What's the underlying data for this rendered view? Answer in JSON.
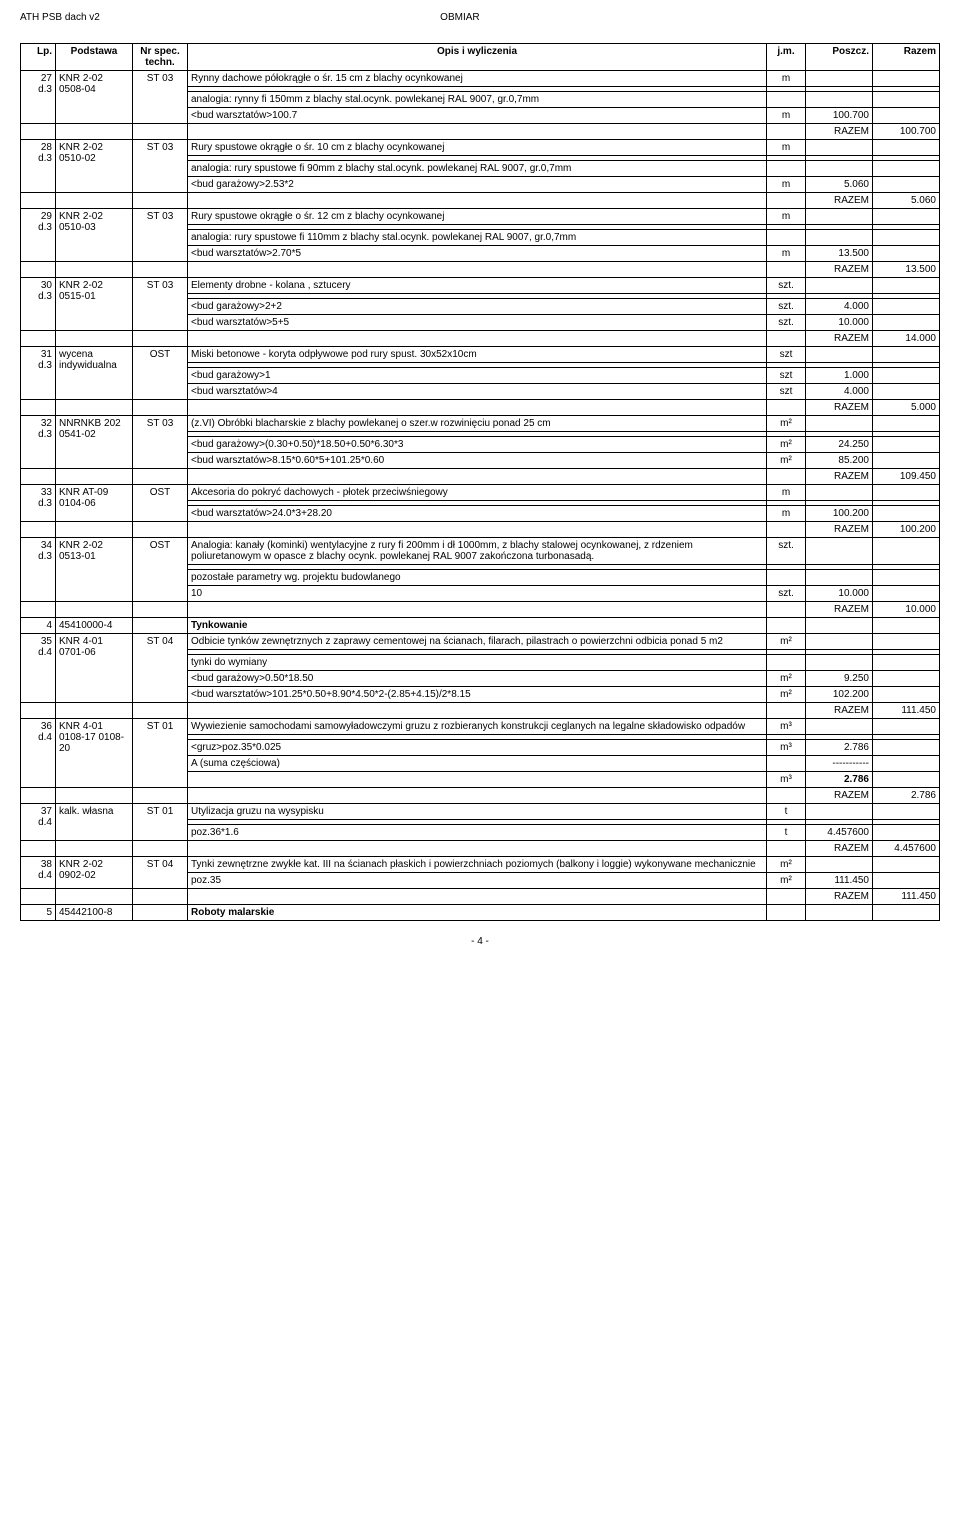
{
  "header": {
    "left": "ATH PSB dach v2",
    "center": "OBMIAR"
  },
  "columns": [
    "Lp.",
    "Podstawa",
    "Nr spec. techn.",
    "Opis i wyliczenia",
    "j.m.",
    "Poszcz.",
    "Razem"
  ],
  "rows": [
    {
      "lp": "27",
      "dsub": "d.3",
      "pod": "KNR 2-02 0508-04",
      "spec": "ST 03",
      "lines": [
        {
          "opis": "Rynny dachowe półokrągłe o śr. 15 cm z blachy ocynkowanej",
          "jm": "m",
          "poszcz": "",
          "razem": ""
        },
        {
          "opis": "",
          "jm": "",
          "poszcz": "",
          "razem": ""
        },
        {
          "opis": "analogia: rynny fi 150mm z blachy stal.ocynk. powlekanej RAL 9007, gr.0,7mm",
          "jm": "",
          "poszcz": "",
          "razem": ""
        },
        {
          "opis": "<bud warsztatów>100.7",
          "jm": "m",
          "poszcz": "100.700",
          "razem": ""
        }
      ],
      "razemline": {
        "label": "RAZEM",
        "val": "100.700"
      }
    },
    {
      "lp": "28",
      "dsub": "d.3",
      "pod": "KNR 2-02 0510-02",
      "spec": "ST 03",
      "lines": [
        {
          "opis": "Rury spustowe okrągłe o śr. 10 cm z blachy ocynkowanej",
          "jm": "m",
          "poszcz": "",
          "razem": ""
        },
        {
          "opis": "",
          "jm": "",
          "poszcz": "",
          "razem": ""
        },
        {
          "opis": "analogia: rury spustowe fi 90mm z blachy stal.ocynk. powlekanej RAL 9007, gr.0,7mm",
          "jm": "",
          "poszcz": "",
          "razem": ""
        },
        {
          "opis": "<bud garażowy>2.53*2",
          "jm": "m",
          "poszcz": "5.060",
          "razem": ""
        }
      ],
      "razemline": {
        "label": "RAZEM",
        "val": "5.060"
      }
    },
    {
      "lp": "29",
      "dsub": "d.3",
      "pod": "KNR 2-02 0510-03",
      "spec": "ST 03",
      "lines": [
        {
          "opis": "Rury spustowe okrągłe o śr. 12 cm z blachy ocynkowanej",
          "jm": "m",
          "poszcz": "",
          "razem": ""
        },
        {
          "opis": "",
          "jm": "",
          "poszcz": "",
          "razem": ""
        },
        {
          "opis": "analogia: rury spustowe fi 110mm z blachy stal.ocynk. powlekanej RAL 9007, gr.0,7mm",
          "jm": "",
          "poszcz": "",
          "razem": ""
        },
        {
          "opis": "<bud  warsztatów>2.70*5",
          "jm": "m",
          "poszcz": "13.500",
          "razem": ""
        }
      ],
      "razemline": {
        "label": "RAZEM",
        "val": "13.500"
      }
    },
    {
      "lp": "30",
      "dsub": "d.3",
      "pod": "KNR 2-02 0515-01",
      "spec": "ST 03",
      "lines": [
        {
          "opis": "Elementy drobne - kolana , sztucery",
          "jm": "szt.",
          "poszcz": "",
          "razem": ""
        },
        {
          "opis": "",
          "jm": "",
          "poszcz": "",
          "razem": ""
        },
        {
          "opis": "<bud  garażowy>2+2",
          "jm": "szt.",
          "poszcz": "4.000",
          "razem": ""
        },
        {
          "opis": "<bud  warsztatów>5+5",
          "jm": "szt.",
          "poszcz": "10.000",
          "razem": ""
        }
      ],
      "razemline": {
        "label": "RAZEM",
        "val": "14.000"
      }
    },
    {
      "lp": "31",
      "dsub": "d.3",
      "pod": "wycena indywidualna",
      "spec": "OST",
      "lines": [
        {
          "opis": "Miski betonowe - koryta odpływowe pod rury spust. 30x52x10cm",
          "jm": "szt",
          "poszcz": "",
          "razem": ""
        },
        {
          "opis": "",
          "jm": "",
          "poszcz": "",
          "razem": ""
        },
        {
          "opis": "<bud  garażowy>1",
          "jm": "szt",
          "poszcz": "1.000",
          "razem": ""
        },
        {
          "opis": "<bud  warsztatów>4",
          "jm": "szt",
          "poszcz": "4.000",
          "razem": ""
        }
      ],
      "razemline": {
        "label": "RAZEM",
        "val": "5.000"
      }
    },
    {
      "lp": "32",
      "dsub": "d.3",
      "pod": "NNRNKB 202 0541-02",
      "spec": "ST 03",
      "lines": [
        {
          "opis": "(z.VI) Obróbki blacharskie z blachy powlekanej o szer.w rozwinięciu ponad 25 cm",
          "jm": "m²",
          "poszcz": "",
          "razem": ""
        },
        {
          "opis": "",
          "jm": "",
          "poszcz": "",
          "razem": ""
        },
        {
          "opis": "<bud  garażowy>(0.30+0.50)*18.50+0.50*6.30*3",
          "jm": "m²",
          "poszcz": "24.250",
          "razem": ""
        },
        {
          "opis": "<bud  warsztatów>8.15*0.60*5+101.25*0.60",
          "jm": "m²",
          "poszcz": "85.200",
          "razem": ""
        }
      ],
      "razemline": {
        "label": "RAZEM",
        "val": "109.450"
      }
    },
    {
      "lp": "33",
      "dsub": "d.3",
      "pod": "KNR AT-09 0104-06",
      "spec": "OST",
      "lines": [
        {
          "opis": "Akcesoria do pokryć dachowych - płotek przeciwśniegowy",
          "jm": "m",
          "poszcz": "",
          "razem": ""
        },
        {
          "opis": "",
          "jm": "",
          "poszcz": "",
          "razem": ""
        },
        {
          "opis": "<bud  warsztatów>24.0*3+28.20",
          "jm": "m",
          "poszcz": "100.200",
          "razem": ""
        }
      ],
      "razemline": {
        "label": "RAZEM",
        "val": "100.200"
      }
    },
    {
      "lp": "34",
      "dsub": "d.3",
      "pod": "KNR 2-02 0513-01",
      "spec": "OST",
      "lines": [
        {
          "opis": "Analogia: kanały (kominki) wentylacyjne z rury fi 200mm i dł 1000mm, z blachy stalowej ocynkowanej, z rdzeniem poliuretanowym w opasce z blachy ocynk. powlekanej RAL 9007 zakończona turbonasadą.",
          "jm": "szt.",
          "poszcz": "",
          "razem": ""
        },
        {
          "opis": "",
          "jm": "",
          "poszcz": "",
          "razem": ""
        },
        {
          "opis": "pozostałe parametry wg. projektu budowlanego",
          "jm": "",
          "poszcz": "",
          "razem": ""
        },
        {
          "opis": "10",
          "jm": "szt.",
          "poszcz": "10.000",
          "razem": ""
        }
      ],
      "razemline": {
        "label": "RAZEM",
        "val": "10.000"
      }
    },
    {
      "lp": "4",
      "dsub": "",
      "pod": "45410000-4",
      "spec": "",
      "lines": [
        {
          "opis": "Tynkowanie",
          "jm": "",
          "poszcz": "",
          "razem": "",
          "bold": true
        }
      ]
    },
    {
      "lp": "35",
      "dsub": "d.4",
      "pod": "KNR 4-01 0701-06",
      "spec": "ST 04",
      "lines": [
        {
          "opis": "Odbicie tynków zewnętrznych z zaprawy cementowej na ścianach, filarach, pilastrach o powierzchni odbicia ponad 5 m2",
          "jm": "m²",
          "poszcz": "",
          "razem": ""
        },
        {
          "opis": "",
          "jm": "",
          "poszcz": "",
          "razem": ""
        },
        {
          "opis": "tynki do wymiany",
          "jm": "",
          "poszcz": "",
          "razem": ""
        },
        {
          "opis": "<bud garażowy>0.50*18.50",
          "jm": "m²",
          "poszcz": "9.250",
          "razem": ""
        },
        {
          "opis": "<bud warsztatów>101.25*0.50+8.90*4.50*2-(2.85+4.15)/2*8.15",
          "jm": "m²",
          "poszcz": "102.200",
          "razem": ""
        }
      ],
      "razemline": {
        "label": "RAZEM",
        "val": "111.450"
      }
    },
    {
      "lp": "36",
      "dsub": "d.4",
      "pod": "KNR 4-01 0108-17 0108-20",
      "spec": "ST 01",
      "lines": [
        {
          "opis": "Wywiezienie samochodami samowyładowczymi gruzu z rozbieranych konstrukcji ceglanych na legalne składowisko odpadów",
          "jm": "m³",
          "poszcz": "",
          "razem": ""
        },
        {
          "opis": "",
          "jm": "",
          "poszcz": "",
          "razem": ""
        },
        {
          "opis": "<gruz>poz.35*0.025",
          "jm": "m³",
          "poszcz": "2.786",
          "razem": ""
        },
        {
          "opis": "A  (suma częściowa)",
          "jm": "",
          "poszcz": "-----------",
          "razem": ""
        },
        {
          "opis": "",
          "jm": "m³",
          "poszcz": "2.786",
          "razem": "",
          "boldval": true
        }
      ],
      "razemline": {
        "label": "RAZEM",
        "val": "2.786"
      }
    },
    {
      "lp": "37",
      "dsub": "d.4",
      "pod": "kalk. własna",
      "spec": "ST 01",
      "lines": [
        {
          "opis": "Utylizacja gruzu na wysypisku",
          "jm": "t",
          "poszcz": "",
          "razem": ""
        },
        {
          "opis": "",
          "jm": "",
          "poszcz": "",
          "razem": ""
        },
        {
          "opis": "poz.36*1.6",
          "jm": "t",
          "poszcz": "4.457600",
          "razem": ""
        }
      ],
      "razemline": {
        "label": "RAZEM",
        "val": "4.457600"
      }
    },
    {
      "lp": "38",
      "dsub": "d.4",
      "pod": "KNR 2-02 0902-02",
      "spec": "ST 04",
      "lines": [
        {
          "opis": "Tynki zewnętrzne zwykłe kat. III na ścianach płaskich i powierzchniach poziomych (balkony i loggie) wykonywane mechanicznie",
          "jm": "m²",
          "poszcz": "",
          "razem": ""
        },
        {
          "opis": "poz.35",
          "jm": "m²",
          "poszcz": "111.450",
          "razem": ""
        }
      ],
      "razemline": {
        "label": "RAZEM",
        "val": "111.450"
      }
    },
    {
      "lp": "5",
      "dsub": "",
      "pod": "45442100-8",
      "spec": "",
      "lines": [
        {
          "opis": "Roboty malarskie",
          "jm": "",
          "poszcz": "",
          "razem": "",
          "bold": true
        }
      ]
    }
  ],
  "pageNum": "- 4 -"
}
